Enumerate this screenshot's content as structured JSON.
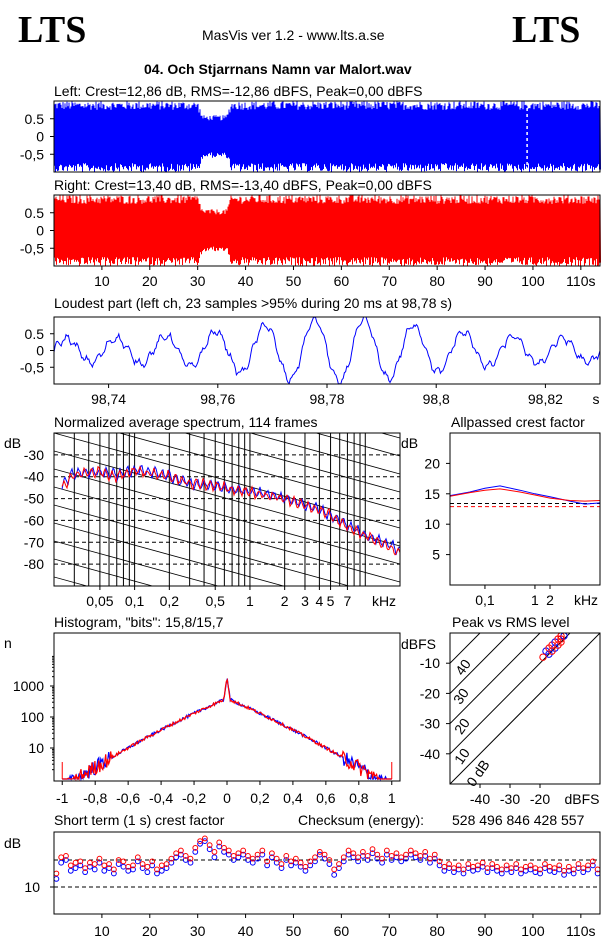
{
  "header": {
    "logo_left": "LTS",
    "logo_right": "LTS",
    "app_title": "MasVis ver 1.2 - www.lts.a.se",
    "file_title": "04. Och Stjarrnans Namn var Malort.wav"
  },
  "colors": {
    "left": "#0000ff",
    "right": "#ff0000",
    "grid": "#000000"
  },
  "chart_data": [
    {
      "id": "left-waveform",
      "type": "area",
      "title": "Left: Crest=12,86 dB, RMS=-12,86 dBFS, Peak=0,00 dBFS",
      "ytick_labels": [
        "0.5",
        "0",
        "-0,5"
      ],
      "ylim": [
        -1,
        1
      ],
      "xlim": [
        0,
        114
      ],
      "envelope": {
        "x": [
          0,
          30,
          31,
          36,
          37,
          114
        ],
        "peak": [
          1.0,
          1.0,
          0.6,
          0.6,
          1.0,
          1.0
        ]
      }
    },
    {
      "id": "right-waveform",
      "type": "area",
      "title": "Right: Crest=13,40 dB, RMS=-13,40 dBFS, Peak=0,00 dBFS",
      "ytick_labels": [
        "0.5",
        "0",
        "-0,5"
      ],
      "ylim": [
        -1,
        1
      ],
      "xlim": [
        0,
        114
      ],
      "xtick_labels": [
        "10",
        "20",
        "30",
        "40",
        "50",
        "60",
        "70",
        "80",
        "90",
        "100",
        "110s"
      ],
      "envelope": {
        "x": [
          0,
          30,
          31,
          36,
          37,
          114
        ],
        "peak": [
          1.0,
          1.0,
          0.6,
          0.6,
          1.0,
          1.0
        ]
      }
    },
    {
      "id": "loudest-part",
      "type": "line",
      "title": "Loudest part (left  ch, 23 samples >95% during 20 ms at 98,78 s)",
      "ytick_labels": [
        "0.5",
        "0",
        "-0,5"
      ],
      "ylim": [
        -1,
        1
      ],
      "xlim": [
        98.73,
        98.83
      ],
      "xtick_labels": [
        "98,74",
        "98,76",
        "98,78",
        "98,8",
        "98,82",
        "s"
      ],
      "xticks": [
        98.74,
        98.76,
        98.78,
        98.8,
        98.82
      ]
    },
    {
      "id": "avg-spectrum",
      "type": "line",
      "title": "Normalized average spectrum, 114 frames",
      "ylabel": "dB",
      "ytick_labels": [
        "-30",
        "-40",
        "-50",
        "-60",
        "-70",
        "-80"
      ],
      "ylim": [
        -90,
        -20
      ],
      "xtick_labels": [
        "0,05",
        "0,1",
        "0,2",
        "0,5",
        "1",
        "2",
        "3",
        "4",
        "5",
        "7",
        "kHz"
      ],
      "series": [
        {
          "name": "left",
          "x": [
            0.02,
            0.03,
            0.05,
            0.07,
            0.1,
            0.15,
            0.2,
            0.3,
            0.5,
            0.7,
            1,
            1.5,
            2,
            3,
            4,
            5,
            7,
            10,
            15,
            20
          ],
          "y": [
            -48,
            -38,
            -38,
            -39,
            -37,
            -38,
            -40,
            -43,
            -44,
            -46,
            -47,
            -48,
            -50,
            -53,
            -55,
            -58,
            -62,
            -67,
            -70,
            -74
          ]
        },
        {
          "name": "right",
          "x": [
            0.02,
            0.03,
            0.05,
            0.07,
            0.1,
            0.15,
            0.2,
            0.3,
            0.5,
            0.7,
            1,
            1.5,
            2,
            3,
            4,
            5,
            7,
            10,
            15,
            20
          ],
          "y": [
            -49,
            -39,
            -38,
            -40,
            -37,
            -39,
            -40,
            -43,
            -44,
            -46,
            -47,
            -49,
            -50,
            -53,
            -55,
            -58,
            -63,
            -67,
            -71,
            -75
          ]
        }
      ]
    },
    {
      "id": "allpassed-crest",
      "type": "line",
      "title": "Allpassed crest factor",
      "ylabel": "dB",
      "ytick_labels": [
        "20",
        "15",
        "10",
        "5"
      ],
      "ylim": [
        0,
        25
      ],
      "xtick_labels": [
        "0,1",
        "1",
        "2",
        "kHz"
      ],
      "series": [
        {
          "name": "left",
          "x": [
            0.02,
            0.05,
            0.1,
            0.2,
            0.5,
            1,
            2,
            5,
            10,
            20
          ],
          "y": [
            14.7,
            15.3,
            15.9,
            16.3,
            15.6,
            15.0,
            14.5,
            13.8,
            13.3,
            13.5
          ]
        },
        {
          "name": "right",
          "x": [
            0.02,
            0.05,
            0.1,
            0.2,
            0.5,
            1,
            2,
            5,
            10,
            20
          ],
          "y": [
            14.6,
            15.2,
            15.6,
            15.8,
            15.3,
            14.8,
            14.3,
            13.9,
            13.8,
            13.9
          ]
        }
      ],
      "reference_lines": [
        13.4,
        12.9
      ]
    },
    {
      "id": "histogram",
      "type": "line",
      "title": "Histogram, \"bits\": 15,8/15,7",
      "ylabel": "n",
      "ytick_labels": [
        "1000",
        "100",
        "10"
      ],
      "xtick_labels": [
        "-1",
        "-0,8",
        "-0,6",
        "-0,4",
        "-0,2",
        "0",
        "0,2",
        "0,4",
        "0,6",
        "0,8",
        "1"
      ],
      "xlim": [
        -1.05,
        1.05
      ]
    },
    {
      "id": "peak-vs-rms",
      "type": "scatter",
      "title": "Peak vs RMS level",
      "ylabel": "dBFS",
      "ytick_labels": [
        "-10",
        "-20",
        "-30",
        "-40"
      ],
      "xtick_labels": [
        "-40",
        "-30",
        "-20",
        "dBFS"
      ],
      "diagonal_labels": [
        "40",
        "30",
        "20",
        "10",
        "0 dB"
      ],
      "xlim": [
        -50,
        0
      ],
      "ylim": [
        -50,
        0
      ],
      "points": [
        [
          -18,
          -6
        ],
        [
          -17,
          -5
        ],
        [
          -16,
          -4
        ],
        [
          -15,
          -3
        ],
        [
          -14,
          -2
        ],
        [
          -13,
          -1
        ],
        [
          -15,
          -5
        ],
        [
          -14,
          -4
        ],
        [
          -13,
          -3
        ],
        [
          -17,
          -7
        ],
        [
          -19,
          -8
        ],
        [
          -16,
          -6
        ],
        [
          -12,
          -1
        ],
        [
          -13,
          -2
        ]
      ]
    },
    {
      "id": "short-term-crest",
      "type": "scatter",
      "title": "Short term (1 s) crest factor",
      "checksum_label": "Checksum (energy):",
      "checksum_value": "528 496 846 428 557",
      "ylabel": "dB",
      "ytick_labels": [
        "10"
      ],
      "xlim": [
        0,
        114
      ],
      "xtick_labels": [
        "10",
        "20",
        "30",
        "40",
        "50",
        "60",
        "70",
        "80",
        "90",
        "100",
        "110s"
      ],
      "series": [
        {
          "name": "left",
          "y": [
            10.6,
            11.8,
            12.0,
            11.2,
            11.4,
            11.6,
            11.1,
            11.5,
            11.3,
            11.8,
            11.2,
            11.4,
            11.0,
            11.7,
            11.5,
            11.2,
            11.3,
            11.9,
            11.4,
            11.1,
            11.6,
            11.0,
            11.2,
            11.4,
            11.8,
            12.2,
            12.4,
            12.0,
            11.8,
            12.6,
            13.2,
            13.4,
            12.8,
            12.2,
            13.0,
            12.6,
            12.4,
            12.0,
            12.2,
            12.4,
            12.0,
            11.8,
            12.1,
            12.4,
            11.6,
            12.2,
            11.8,
            11.4,
            12.0,
            11.6,
            11.8,
            11.5,
            11.2,
            11.6,
            11.9,
            12.4,
            12.1,
            11.7,
            10.9,
            11.4,
            11.9,
            12.4,
            12.2,
            11.9,
            12.3,
            12.0,
            12.5,
            12.1,
            11.8,
            12.4,
            12.0,
            12.2,
            11.9,
            12.1,
            12.4,
            12.2,
            12.0,
            12.3,
            11.8,
            12.1,
            11.6,
            11.2,
            11.4,
            11.1,
            11.3,
            11.0,
            11.4,
            11.2,
            11.3,
            11.5,
            11.1,
            11.4,
            11.2,
            11.0,
            11.3,
            11.1,
            11.4,
            11.0,
            11.2,
            11.3,
            11.1,
            11.0,
            11.4,
            11.2,
            11.1,
            11.3,
            10.9,
            11.2,
            11.0,
            11.4,
            11.1,
            11.3,
            11.6,
            11.0
          ]
        },
        {
          "name": "right",
          "y": [
            11.0,
            12.2,
            12.3,
            11.6,
            11.8,
            11.9,
            11.4,
            11.8,
            11.7,
            12.1,
            11.6,
            11.7,
            11.3,
            12.0,
            11.9,
            11.5,
            11.6,
            12.2,
            11.7,
            11.5,
            11.9,
            11.3,
            11.6,
            11.7,
            12.1,
            12.5,
            12.7,
            12.3,
            12.1,
            12.9,
            13.4,
            13.6,
            13.1,
            12.6,
            13.3,
            12.9,
            12.7,
            12.3,
            12.5,
            12.7,
            12.3,
            12.1,
            12.4,
            12.7,
            11.9,
            12.5,
            12.1,
            11.7,
            12.3,
            11.9,
            12.1,
            11.8,
            11.5,
            11.9,
            12.2,
            12.6,
            12.4,
            12.0,
            11.3,
            11.7,
            12.2,
            12.7,
            12.5,
            12.2,
            12.6,
            12.3,
            12.8,
            12.4,
            12.1,
            12.7,
            12.3,
            12.5,
            12.2,
            12.4,
            12.7,
            12.5,
            12.3,
            12.6,
            12.1,
            12.4,
            11.9,
            11.5,
            11.7,
            11.4,
            11.6,
            11.3,
            11.7,
            11.5,
            11.6,
            11.8,
            11.4,
            11.7,
            11.5,
            11.3,
            11.6,
            11.4,
            11.7,
            11.3,
            11.5,
            11.6,
            11.4,
            11.3,
            11.7,
            11.5,
            11.4,
            11.6,
            11.2,
            11.5,
            11.3,
            11.7,
            11.4,
            11.6,
            11.9,
            11.3
          ]
        }
      ]
    }
  ]
}
